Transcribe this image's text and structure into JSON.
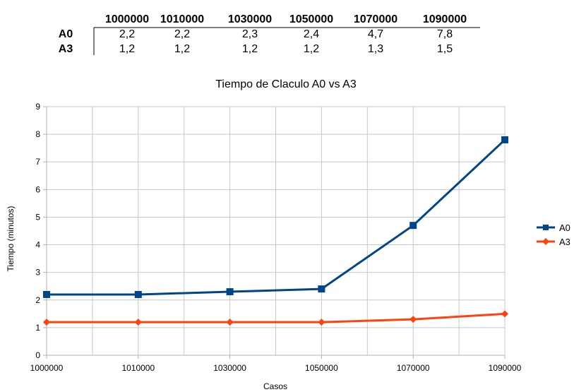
{
  "table": {
    "headers": [
      "1000000",
      "1010000",
      "1030000",
      "1050000",
      "1070000",
      "1090000"
    ],
    "rows": [
      {
        "label": "A0",
        "cells": [
          "2,2",
          "2,2",
          "2,3",
          "2,4",
          "4,7",
          "7,8"
        ]
      },
      {
        "label": "A3",
        "cells": [
          "1,2",
          "1,2",
          "1,2",
          "1,2",
          "1,3",
          "1,5"
        ]
      }
    ]
  },
  "chart_data": {
    "type": "line",
    "title": "Tiempo de Claculo A0 vs A3",
    "xlabel": "Casos",
    "ylabel": "Tiempo (minutos)",
    "categories": [
      "1000000",
      "1010000",
      "1030000",
      "1050000",
      "1070000",
      "1090000"
    ],
    "ylim": [
      0,
      9
    ],
    "yticks": [
      "0",
      "1",
      "2",
      "3",
      "4",
      "5",
      "6",
      "7",
      "8",
      "9"
    ],
    "grid": true,
    "legend_position": "right",
    "series": [
      {
        "name": "A0",
        "values": [
          2.2,
          2.2,
          2.3,
          2.4,
          4.7,
          7.8
        ],
        "color": "#004586",
        "marker": "square"
      },
      {
        "name": "A3",
        "values": [
          1.2,
          1.2,
          1.2,
          1.2,
          1.3,
          1.5
        ],
        "color": "#ff420e",
        "marker": "diamond"
      }
    ]
  }
}
